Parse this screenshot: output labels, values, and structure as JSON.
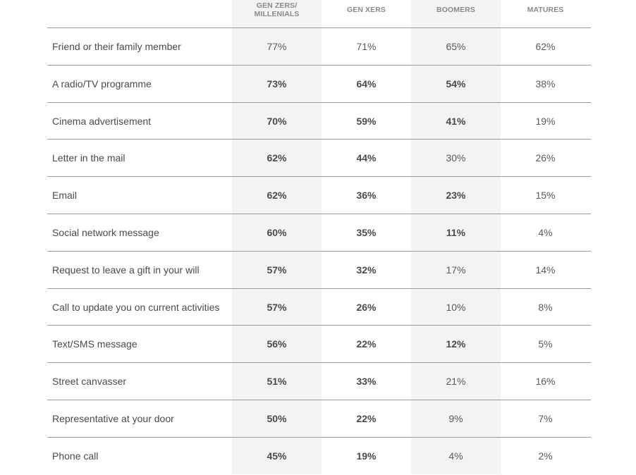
{
  "chart_data": {
    "type": "table",
    "columns": [
      "GEN ZERS/\nMILLENIALS",
      "GEN XERS",
      "BOOMERS",
      "MATURES"
    ],
    "rows": [
      {
        "label": "Friend or their family member",
        "values": [
          "77%",
          "71%",
          "65%",
          "62%"
        ],
        "bold": [
          false,
          false,
          false,
          false
        ]
      },
      {
        "label": "A radio/TV programme",
        "values": [
          "73%",
          "64%",
          "54%",
          "38%"
        ],
        "bold": [
          true,
          true,
          true,
          false
        ]
      },
      {
        "label": "Cinema advertisement",
        "values": [
          "70%",
          "59%",
          "41%",
          "19%"
        ],
        "bold": [
          true,
          true,
          true,
          false
        ]
      },
      {
        "label": "Letter in the mail",
        "values": [
          "62%",
          "44%",
          "30%",
          "26%"
        ],
        "bold": [
          true,
          true,
          false,
          false
        ]
      },
      {
        "label": "Email",
        "values": [
          "62%",
          "36%",
          "23%",
          "15%"
        ],
        "bold": [
          true,
          true,
          true,
          false
        ]
      },
      {
        "label": "Social network message",
        "values": [
          "60%",
          "35%",
          "11%",
          "4%"
        ],
        "bold": [
          true,
          true,
          true,
          false
        ]
      },
      {
        "label": "Request to leave a gift in your will",
        "values": [
          "57%",
          "32%",
          "17%",
          "14%"
        ],
        "bold": [
          true,
          true,
          false,
          false
        ]
      },
      {
        "label": "Call to update you on current activities",
        "values": [
          "57%",
          "26%",
          "10%",
          "8%"
        ],
        "bold": [
          true,
          true,
          false,
          false
        ]
      },
      {
        "label": "Text/SMS message",
        "values": [
          "56%",
          "22%",
          "12%",
          "5%"
        ],
        "bold": [
          true,
          true,
          true,
          false
        ]
      },
      {
        "label": "Street canvasser",
        "values": [
          "51%",
          "33%",
          "21%",
          "16%"
        ],
        "bold": [
          true,
          true,
          false,
          false
        ]
      },
      {
        "label": "Representative at your door",
        "values": [
          "50%",
          "22%",
          "9%",
          "7%"
        ],
        "bold": [
          true,
          true,
          false,
          false
        ]
      },
      {
        "label": "Phone call",
        "values": [
          "45%",
          "19%",
          "4%",
          "2%"
        ],
        "bold": [
          true,
          true,
          false,
          false
        ]
      }
    ],
    "colors": {
      "shaded_column": "#f3f3f3",
      "rule": "#9a9a9a",
      "header_text": "#8a8a8a",
      "body_text": "#4a4a4a"
    }
  }
}
